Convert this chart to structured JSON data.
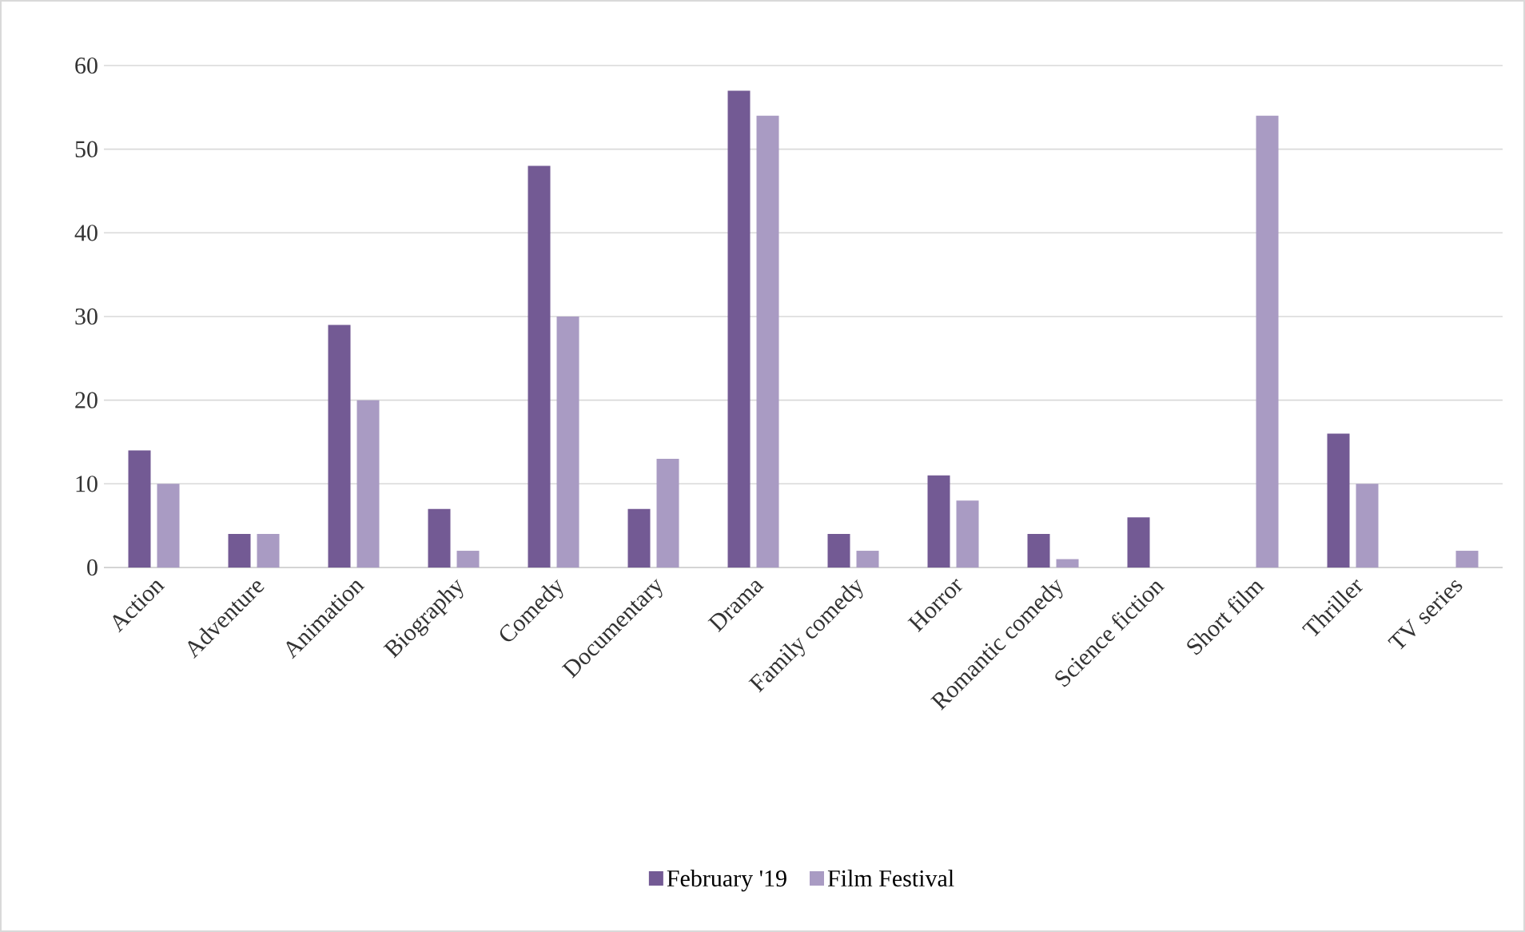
{
  "chart_data": {
    "type": "bar",
    "categories": [
      "Action",
      "Adventure",
      "Animation",
      "Biography",
      "Comedy",
      "Documentary",
      "Drama",
      "Family comedy",
      "Horror",
      "Romantic comedy",
      "Science fiction",
      "Short film",
      "Thriller",
      "TV series"
    ],
    "series": [
      {
        "name": "February '19",
        "color": "#735a94",
        "values": [
          14,
          4,
          29,
          7,
          48,
          7,
          57,
          4,
          11,
          4,
          6,
          0,
          16,
          0
        ]
      },
      {
        "name": "Film Festival",
        "color": "#a99bc3",
        "values": [
          10,
          4,
          20,
          2,
          30,
          13,
          54,
          2,
          8,
          1,
          0,
          54,
          10,
          2
        ]
      }
    ],
    "ylim": [
      0,
      60
    ],
    "yticks": [
      0,
      10,
      20,
      30,
      40,
      50,
      60
    ],
    "grid": "y",
    "legend": "bottom"
  }
}
